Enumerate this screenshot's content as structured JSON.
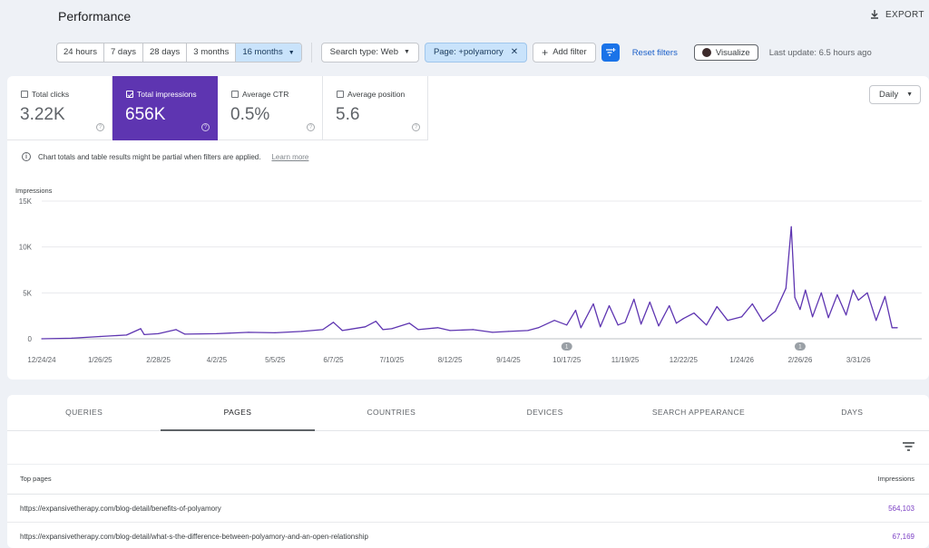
{
  "header": {
    "title": "Performance",
    "export_label": "EXPORT"
  },
  "filters": {
    "ranges": [
      "24 hours",
      "7 days",
      "28 days",
      "3 months",
      "16 months"
    ],
    "active_range": "16 months",
    "search_type": "Search type: Web",
    "page_filter": "Page: +polyamory",
    "add_filter": "Add filter",
    "reset": "Reset filters",
    "visualize": "Visualize",
    "last_update": "Last update: 6.5 hours ago"
  },
  "metrics": [
    {
      "label": "Total clicks",
      "value": "3.22K",
      "active": false
    },
    {
      "label": "Total impressions",
      "value": "656K",
      "active": true
    },
    {
      "label": "Average CTR",
      "value": "0.5%",
      "active": false
    },
    {
      "label": "Average position",
      "value": "5.6",
      "active": false
    }
  ],
  "granularity": "Daily",
  "notice": {
    "text": "Chart totals and table results might be partial when filters are applied.",
    "link": "Learn more"
  },
  "colors": {
    "accent": "#5e35b1",
    "link": "#1a73e8",
    "value": "#7b3fc4"
  },
  "chart_data": {
    "type": "line",
    "ylabel": "Impressions",
    "y_ticks": [
      "0",
      "5K",
      "10K",
      "15K"
    ],
    "ylim": [
      0,
      15000
    ],
    "x_tick_labels": [
      "12/24/24",
      "1/26/25",
      "2/28/25",
      "4/2/25",
      "5/5/25",
      "6/7/25",
      "7/10/25",
      "8/12/25",
      "9/14/25",
      "10/17/25",
      "11/19/25",
      "12/22/25",
      "1/24/26",
      "2/26/26",
      "3/31/26"
    ],
    "annotations": [
      {
        "date": "10/17/25",
        "label": "1"
      },
      {
        "date": "2/26/26",
        "label": "1"
      }
    ],
    "series": [
      {
        "color": "#5e35b1",
        "points": [
          [
            "12/24/24",
            0
          ],
          [
            "1/10/25",
            60
          ],
          [
            "1/26/25",
            250
          ],
          [
            "2/10/25",
            400
          ],
          [
            "2/18/25",
            1100
          ],
          [
            "2/20/25",
            450
          ],
          [
            "2/28/25",
            550
          ],
          [
            "3/10/25",
            1000
          ],
          [
            "3/15/25",
            500
          ],
          [
            "4/2/25",
            550
          ],
          [
            "4/20/25",
            700
          ],
          [
            "5/5/25",
            650
          ],
          [
            "5/20/25",
            800
          ],
          [
            "6/1/25",
            1000
          ],
          [
            "6/7/25",
            1800
          ],
          [
            "6/12/25",
            900
          ],
          [
            "6/25/25",
            1300
          ],
          [
            "7/1/25",
            1900
          ],
          [
            "7/5/25",
            1000
          ],
          [
            "7/10/25",
            1100
          ],
          [
            "7/20/25",
            1700
          ],
          [
            "7/25/25",
            1000
          ],
          [
            "8/5/25",
            1200
          ],
          [
            "8/12/25",
            900
          ],
          [
            "8/25/25",
            1000
          ],
          [
            "9/5/25",
            700
          ],
          [
            "9/14/25",
            800
          ],
          [
            "9/25/25",
            900
          ],
          [
            "10/1/25",
            1200
          ],
          [
            "10/10/25",
            2000
          ],
          [
            "10/17/25",
            1500
          ],
          [
            "10/22/25",
            3100
          ],
          [
            "10/25/25",
            1200
          ],
          [
            "11/1/25",
            3800
          ],
          [
            "11/5/25",
            1300
          ],
          [
            "11/10/25",
            3600
          ],
          [
            "11/15/25",
            1500
          ],
          [
            "11/19/25",
            1800
          ],
          [
            "11/24/25",
            4300
          ],
          [
            "11/28/25",
            1600
          ],
          [
            "12/3/25",
            4000
          ],
          [
            "12/8/25",
            1400
          ],
          [
            "12/14/25",
            3600
          ],
          [
            "12/18/25",
            1700
          ],
          [
            "12/22/25",
            2200
          ],
          [
            "12/28/25",
            2800
          ],
          [
            "1/4/26",
            1500
          ],
          [
            "1/10/26",
            3500
          ],
          [
            "1/16/26",
            2000
          ],
          [
            "1/24/26",
            2400
          ],
          [
            "1/30/26",
            3800
          ],
          [
            "2/5/26",
            1900
          ],
          [
            "2/12/26",
            3000
          ],
          [
            "2/18/26",
            5500
          ],
          [
            "2/21/26",
            12200
          ],
          [
            "2/23/26",
            4500
          ],
          [
            "2/26/26",
            3200
          ],
          [
            "3/1/26",
            5300
          ],
          [
            "3/5/26",
            2400
          ],
          [
            "3/10/26",
            5000
          ],
          [
            "3/14/26",
            2300
          ],
          [
            "3/19/26",
            4800
          ],
          [
            "3/24/26",
            2600
          ],
          [
            "3/28/26",
            5300
          ],
          [
            "3/31/26",
            4200
          ],
          [
            "4/5/26",
            5000
          ],
          [
            "4/10/26",
            2000
          ],
          [
            "4/15/26",
            4600
          ],
          [
            "4/19/26",
            1200
          ],
          [
            "4/22/26",
            1200
          ]
        ]
      }
    ]
  },
  "table": {
    "tabs": [
      "QUERIES",
      "PAGES",
      "COUNTRIES",
      "DEVICES",
      "SEARCH APPEARANCE",
      "DAYS"
    ],
    "active_tab": "PAGES",
    "col_page": "Top pages",
    "col_value": "Impressions",
    "rows": [
      {
        "page": "https://expansivetherapy.com/blog-detail/benefits-of-polyamory",
        "impressions": "564,103"
      },
      {
        "page": "https://expansivetherapy.com/blog-detail/what-s-the-difference-between-polyamory-and-an-open-relationship",
        "impressions": "67,169"
      }
    ]
  }
}
